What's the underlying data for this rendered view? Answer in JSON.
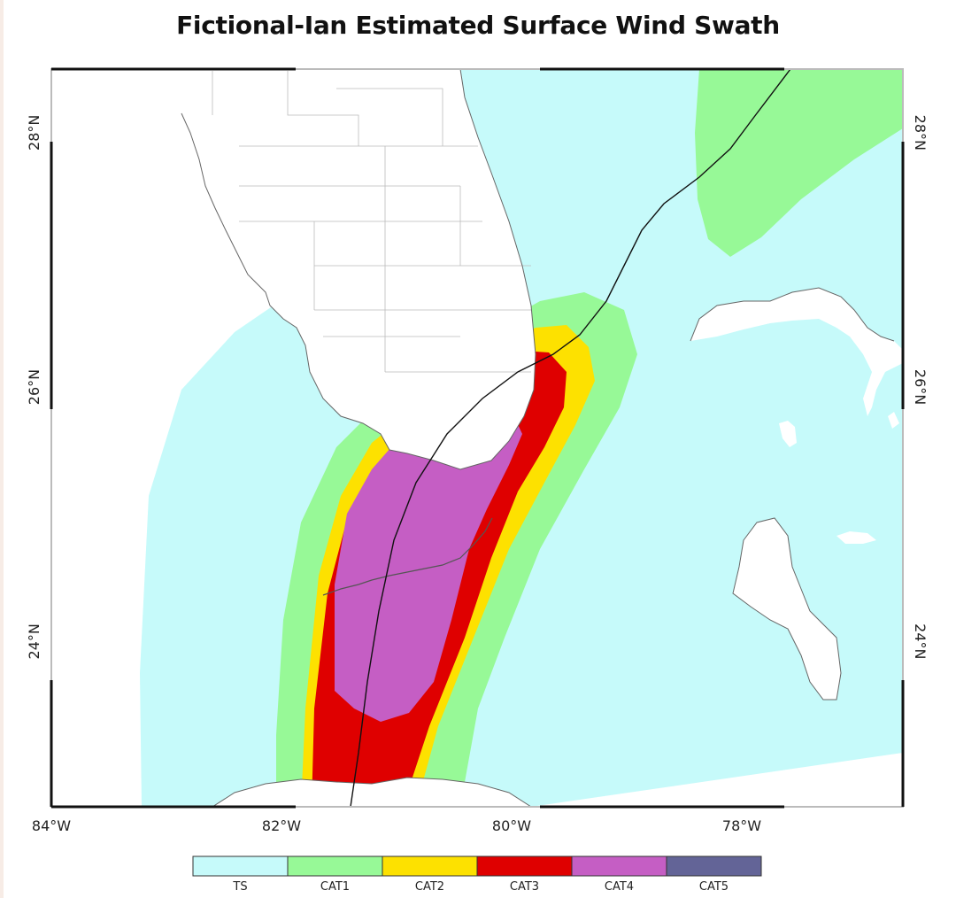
{
  "title": "Fictional-Ian Estimated Surface Wind Swath",
  "map": {
    "lon_range": [
      -84.0,
      -76.6
    ],
    "lat_range": [
      22.7,
      28.5
    ],
    "lon_ticks": [
      {
        "value": -84,
        "label": "84°W"
      },
      {
        "value": -82,
        "label": "82°W"
      },
      {
        "value": -80,
        "label": "80°W"
      },
      {
        "value": -78,
        "label": "78°W"
      }
    ],
    "lat_ticks": [
      {
        "value": 24,
        "label": "24°N"
      },
      {
        "value": 26,
        "label": "26°N"
      },
      {
        "value": 28,
        "label": "28°N"
      }
    ]
  },
  "legend": [
    {
      "key": "ts",
      "label": "TS",
      "color": "#c6fafa"
    },
    {
      "key": "cat1",
      "label": "CAT1",
      "color": "#97f997"
    },
    {
      "key": "cat2",
      "label": "CAT2",
      "color": "#fde100"
    },
    {
      "key": "cat3",
      "label": "CAT3",
      "color": "#df0000"
    },
    {
      "key": "cat4",
      "label": "CAT4",
      "color": "#c55ec4"
    },
    {
      "key": "cat5",
      "label": "CAT5",
      "color": "#636497"
    }
  ],
  "colors": {
    "land": "#ffffff",
    "coast": "#555555",
    "track": "#111111"
  }
}
